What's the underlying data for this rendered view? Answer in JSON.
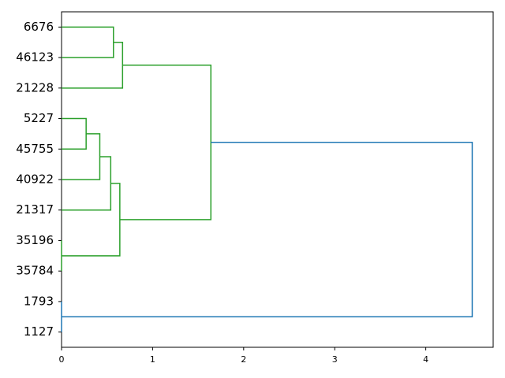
{
  "chart_data": {
    "type": "dendrogram",
    "orientation": "left",
    "leaves": [
      "6676",
      "46123",
      "21228",
      "5227",
      "45755",
      "40922",
      "21317",
      "35196",
      "35784",
      "1793",
      "1127"
    ],
    "merges": [
      {
        "children": [
          0,
          1
        ],
        "height": 0.57,
        "color": "#2ca02c"
      },
      {
        "children": [
          11,
          2
        ],
        "height": 0.67,
        "color": "#2ca02c"
      },
      {
        "children": [
          3,
          4
        ],
        "height": 0.27,
        "color": "#2ca02c"
      },
      {
        "children": [
          13,
          5
        ],
        "height": 0.42,
        "color": "#2ca02c"
      },
      {
        "children": [
          14,
          6
        ],
        "height": 0.54,
        "color": "#2ca02c"
      },
      {
        "children": [
          7,
          8
        ],
        "height": 0,
        "color": "#2ca02c"
      },
      {
        "children": [
          15,
          16
        ],
        "height": 0.64,
        "color": "#2ca02c"
      },
      {
        "children": [
          12,
          17
        ],
        "height": 1.64,
        "color": "#2ca02c"
      },
      {
        "children": [
          9,
          10
        ],
        "height": 0,
        "color": "#1f77b4"
      },
      {
        "children": [
          18,
          19
        ],
        "height": 4.51,
        "color": "#1f77b4"
      }
    ],
    "xlim": [
      0,
      4.74
    ],
    "xticks": [
      0,
      1,
      2,
      3,
      4
    ]
  }
}
